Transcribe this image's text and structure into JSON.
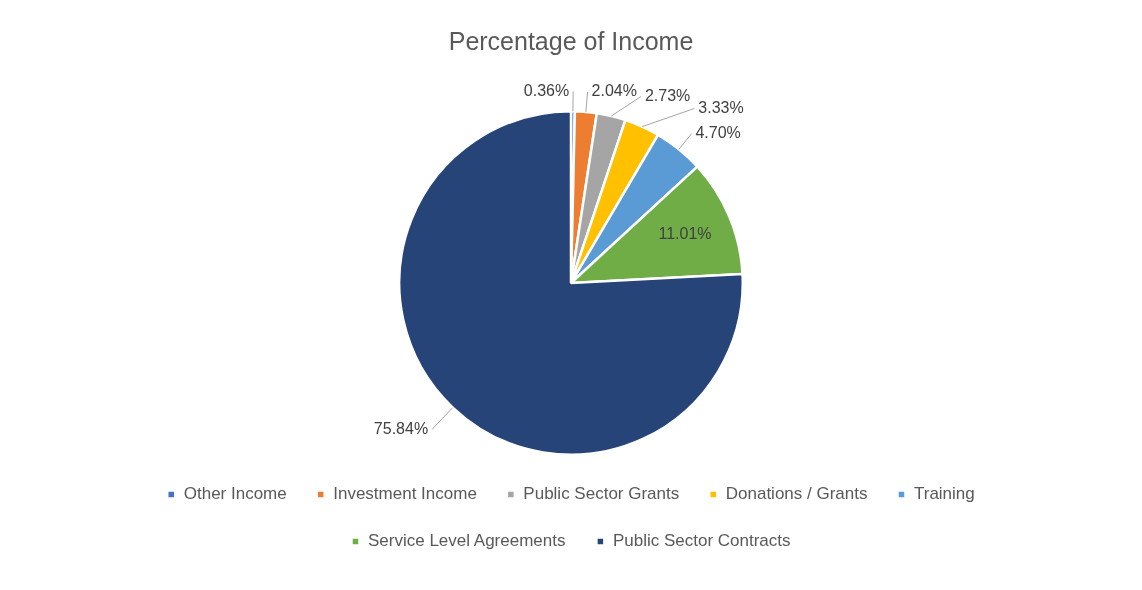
{
  "chart_data": {
    "type": "pie",
    "title": "Percentage of Income",
    "categories": [
      "Other Income",
      "Investment Income",
      "Public Sector Grants",
      "Donations / Grants",
      "Training",
      "Service Level Agreements",
      "Public Sector Contracts"
    ],
    "values": [
      0.36,
      2.04,
      2.73,
      3.33,
      4.7,
      11.01,
      75.84
    ],
    "colors": [
      "#4472c4",
      "#ed7d31",
      "#a5a5a5",
      "#ffc000",
      "#5b9bd5",
      "#70ad47",
      "#264478"
    ],
    "value_labels": [
      "0.36%",
      "2.04%",
      "2.73%",
      "3.33%",
      "4.70%",
      "11.01%",
      "75.84%"
    ],
    "legend": "bottom"
  }
}
